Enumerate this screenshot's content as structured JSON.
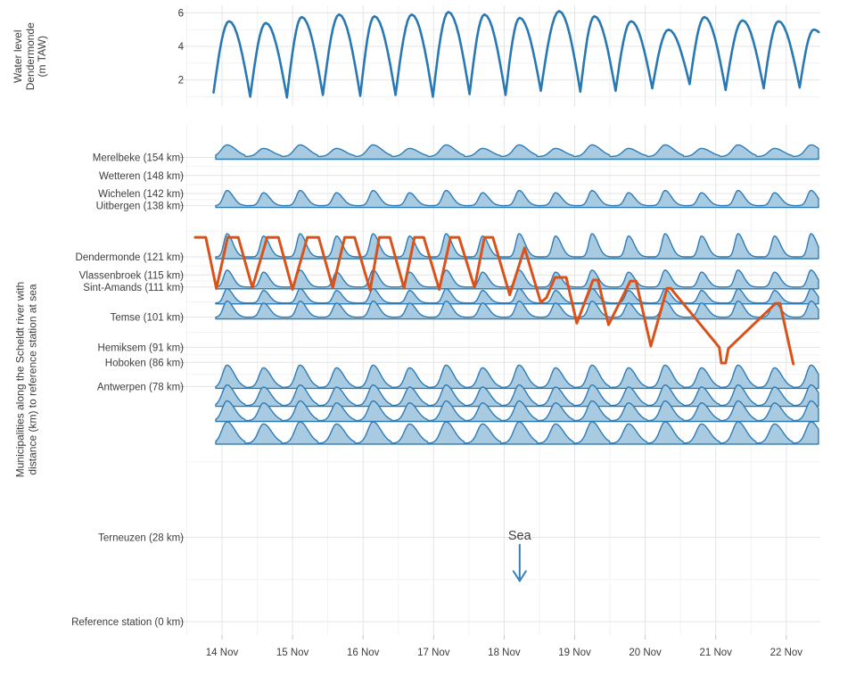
{
  "colors": {
    "tide_line": "#2878b4",
    "ridge_fill": "#a9cbe1",
    "ridge_stroke": "#2e7cb5",
    "orange_line": "#d8521a",
    "sea_annotation": "#3380bd",
    "grid_major": "#e4e4e4",
    "grid_minor": "#f2f2f2",
    "tick": "#c6c6c6",
    "text": "#3d3d3d"
  },
  "chart_data": {
    "type": "ridgeline",
    "x_unit": "days since 14 Nov 00:00",
    "x_ticks": [
      "14 Nov",
      "15 Nov",
      "16 Nov",
      "17 Nov",
      "18 Nov",
      "19 Nov",
      "20 Nov",
      "21 Nov",
      "22 Nov"
    ],
    "top_panel": {
      "ylabel": "Water level\nDendermonde\n(m TAW)",
      "yticks": [
        6,
        4,
        2
      ],
      "series_name": "water-level-dendermonde-m-taw",
      "tide_extremes": [
        [
          -0.12,
          1.25
        ],
        [
          0.1,
          5.5
        ],
        [
          0.4,
          1.0
        ],
        [
          0.62,
          5.4
        ],
        [
          0.92,
          0.95
        ],
        [
          1.13,
          5.75
        ],
        [
          1.43,
          1.1
        ],
        [
          1.66,
          5.9
        ],
        [
          1.96,
          1.05
        ],
        [
          2.16,
          5.8
        ],
        [
          2.46,
          1.1
        ],
        [
          2.69,
          5.9
        ],
        [
          2.99,
          1.0
        ],
        [
          3.21,
          6.05
        ],
        [
          3.51,
          1.15
        ],
        [
          3.72,
          5.9
        ],
        [
          4.02,
          1.1
        ],
        [
          4.22,
          5.7
        ],
        [
          4.52,
          1.35
        ],
        [
          4.78,
          6.1
        ],
        [
          5.08,
          1.3
        ],
        [
          5.28,
          5.8
        ],
        [
          5.58,
          1.35
        ],
        [
          5.8,
          5.5
        ],
        [
          6.1,
          1.5
        ],
        [
          6.33,
          5.0
        ],
        [
          6.63,
          1.75
        ],
        [
          6.84,
          5.75
        ],
        [
          7.14,
          1.4
        ],
        [
          7.38,
          5.55
        ],
        [
          7.68,
          1.5
        ],
        [
          7.89,
          5.5
        ],
        [
          8.19,
          1.55
        ],
        [
          8.39,
          5.0
        ],
        [
          8.46,
          4.85
        ]
      ]
    },
    "main_panel": {
      "ylabel": "Municipalities along the Scheldt river with\ndistance (km) to reference station at sea",
      "cycle_days": 0.5175,
      "first_crest_day": 0.07,
      "stations": [
        {
          "label": "Merelbeke (154 km)",
          "km": 154,
          "ridge": {
            "amp": 13,
            "lift": 3,
            "rise": 0.15,
            "fall": 0.24,
            "ineq": 0.3
          }
        },
        {
          "label": "Wetteren (148 km)",
          "km": 148,
          "ridge": null
        },
        {
          "label": "Wichelen (142 km)",
          "km": 142,
          "ridge": null
        },
        {
          "label": "Uitbergen (138 km)",
          "km": 138,
          "ridge": {
            "amp": 17,
            "lift": 2,
            "rise": 0.1,
            "fall": 0.17,
            "ineq": 0.15
          }
        },
        {
          "label": "Dendermonde (121 km)",
          "km": 121,
          "ridge": {
            "amp": 26,
            "lift": 2,
            "rise": 0.085,
            "fall": 0.16,
            "ineq": 0.1
          }
        },
        {
          "label": "Vlassenbroek (115 km)",
          "km": 115,
          "ridge": null
        },
        {
          "label": "Sint-Amands (111 km)",
          "km": 111,
          "ridge": {
            "amp": 19,
            "lift": 2,
            "rise": 0.09,
            "fall": 0.16,
            "ineq": 0.12
          }
        },
        {
          "label": "Temse (101 km)",
          "km": 101,
          "ridge": {
            "amp": 18,
            "lift": 2,
            "rise": 0.1,
            "fall": 0.17,
            "ineq": 0.12
          }
        },
        {
          "label": "Hemiksem (91 km)",
          "km": 91,
          "ridge": null
        },
        {
          "label": "Hoboken (86 km)",
          "km": 86,
          "ridge": null
        },
        {
          "label": "Antwerpen (78 km)",
          "km": 78,
          "ridge": {
            "amp": 25,
            "lift": 1,
            "rise": 0.12,
            "fall": 0.2,
            "ineq": 0.12
          }
        },
        {
          "label": "Terneuzen (28 km)",
          "km": 28,
          "ridge": null
        },
        {
          "label": "Reference station (0 km)",
          "km": 0,
          "ridge": null
        }
      ],
      "unlabeled_ridges": [
        {
          "km": 106,
          "amp": 16,
          "lift": 1,
          "rise": 0.09,
          "fall": 0.16,
          "ineq": 0.12
        },
        {
          "km": 72,
          "amp": 23,
          "lift": 1,
          "rise": 0.13,
          "fall": 0.21,
          "ineq": 0.1
        },
        {
          "km": 67,
          "amp": 22,
          "lift": 1,
          "rise": 0.13,
          "fall": 0.21,
          "ineq": 0.1
        },
        {
          "km": 59.5,
          "amp": 24,
          "lift": 1,
          "rise": 0.14,
          "fall": 0.22,
          "ineq": 0.1
        }
      ],
      "orange_line": {
        "name": "upstream-tidal-extent",
        "points": [
          [
            -0.38,
            127.5
          ],
          [
            -0.23,
            127.5
          ],
          [
            -0.08,
            110.5
          ],
          [
            0.08,
            127.5
          ],
          [
            0.23,
            127.5
          ],
          [
            0.43,
            110.8
          ],
          [
            0.64,
            127.5
          ],
          [
            0.8,
            127.5
          ],
          [
            1.0,
            110.2
          ],
          [
            1.21,
            127.5
          ],
          [
            1.37,
            127.5
          ],
          [
            1.57,
            110.8
          ],
          [
            1.74,
            127.5
          ],
          [
            1.88,
            127.5
          ],
          [
            2.1,
            109.9
          ],
          [
            2.23,
            127.5
          ],
          [
            2.38,
            127.5
          ],
          [
            2.58,
            110.6
          ],
          [
            2.73,
            127.5
          ],
          [
            2.86,
            127.5
          ],
          [
            3.08,
            110.2
          ],
          [
            3.24,
            127.5
          ],
          [
            3.36,
            127.5
          ],
          [
            3.58,
            110.8
          ],
          [
            3.72,
            127.5
          ],
          [
            3.84,
            127.5
          ],
          [
            4.08,
            108.4
          ],
          [
            4.29,
            124.0
          ],
          [
            4.52,
            105.9
          ],
          [
            4.6,
            107.5
          ],
          [
            4.72,
            114.2
          ],
          [
            4.88,
            114.2
          ],
          [
            5.03,
            99.0
          ],
          [
            5.26,
            113.3
          ],
          [
            5.33,
            113.3
          ],
          [
            5.48,
            98.5
          ],
          [
            5.79,
            113.0
          ],
          [
            5.87,
            113.0
          ],
          [
            6.08,
            91.4
          ],
          [
            6.31,
            110.6
          ],
          [
            6.36,
            110.6
          ],
          [
            7.05,
            91.0
          ],
          [
            7.08,
            85.8
          ],
          [
            7.14,
            85.8
          ],
          [
            7.18,
            90.6
          ],
          [
            7.85,
            105.6
          ],
          [
            7.91,
            105.6
          ],
          [
            8.1,
            85.5
          ]
        ]
      },
      "annotation": {
        "text": "Sea",
        "day": 4.22,
        "km": 28.7,
        "arrow_from_km": 25.5,
        "arrow_to_km": 13.5
      }
    }
  }
}
